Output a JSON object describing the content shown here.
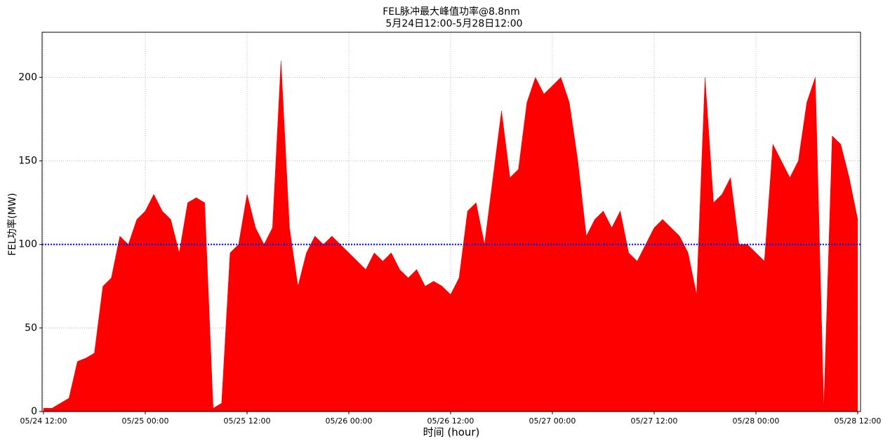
{
  "chart_data": {
    "type": "area",
    "title": "FEL脉冲最大峰值功率@8.8nm",
    "subtitle": "5月24日12:00-5月28日12:00",
    "xlabel": "时间 (hour)",
    "ylabel": "FEL功率(MW)",
    "x": [
      "05/24 12:00",
      "05/24 13:00",
      "05/24 14:00",
      "05/24 15:00",
      "05/24 16:00",
      "05/24 17:00",
      "05/24 18:00",
      "05/24 19:00",
      "05/24 20:00",
      "05/24 21:00",
      "05/24 22:00",
      "05/24 23:00",
      "05/25 00:00",
      "05/25 01:00",
      "05/25 02:00",
      "05/25 03:00",
      "05/25 04:00",
      "05/25 05:00",
      "05/25 06:00",
      "05/25 07:00",
      "05/25 08:00",
      "05/25 09:00",
      "05/25 10:00",
      "05/25 11:00",
      "05/25 12:00",
      "05/25 13:00",
      "05/25 14:00",
      "05/25 15:00",
      "05/25 16:00",
      "05/25 17:00",
      "05/25 18:00",
      "05/25 19:00",
      "05/25 20:00",
      "05/25 21:00",
      "05/25 22:00",
      "05/25 23:00",
      "05/26 00:00",
      "05/26 01:00",
      "05/26 02:00",
      "05/26 03:00",
      "05/26 04:00",
      "05/26 05:00",
      "05/26 06:00",
      "05/26 07:00",
      "05/26 08:00",
      "05/26 09:00",
      "05/26 10:00",
      "05/26 11:00",
      "05/26 12:00",
      "05/26 13:00",
      "05/26 14:00",
      "05/26 15:00",
      "05/26 16:00",
      "05/26 17:00",
      "05/26 18:00",
      "05/26 19:00",
      "05/26 20:00",
      "05/26 21:00",
      "05/26 22:00",
      "05/26 23:00",
      "05/27 00:00",
      "05/27 01:00",
      "05/27 02:00",
      "05/27 03:00",
      "05/27 04:00",
      "05/27 05:00",
      "05/27 06:00",
      "05/27 07:00",
      "05/27 08:00",
      "05/27 09:00",
      "05/27 10:00",
      "05/27 11:00",
      "05/27 12:00",
      "05/27 13:00",
      "05/27 14:00",
      "05/27 15:00",
      "05/27 16:00",
      "05/27 17:00",
      "05/27 18:00",
      "05/27 19:00",
      "05/27 20:00",
      "05/27 21:00",
      "05/27 22:00",
      "05/27 23:00",
      "05/28 00:00",
      "05/28 01:00",
      "05/28 02:00",
      "05/28 03:00",
      "05/28 04:00",
      "05/28 05:00",
      "05/28 06:00",
      "05/28 07:00",
      "05/28 08:00",
      "05/28 09:00",
      "05/28 10:00",
      "05/28 11:00",
      "05/28 12:00"
    ],
    "values": [
      2,
      2,
      5,
      8,
      30,
      32,
      35,
      75,
      80,
      105,
      100,
      115,
      120,
      130,
      120,
      115,
      95,
      125,
      128,
      125,
      2,
      5,
      95,
      100,
      130,
      110,
      100,
      110,
      210,
      110,
      75,
      95,
      105,
      100,
      105,
      100,
      95,
      90,
      85,
      95,
      90,
      95,
      85,
      80,
      85,
      75,
      78,
      75,
      70,
      80,
      120,
      125,
      100,
      140,
      180,
      140,
      145,
      185,
      200,
      190,
      195,
      200,
      185,
      150,
      105,
      115,
      120,
      110,
      120,
      95,
      90,
      100,
      110,
      115,
      110,
      105,
      95,
      70,
      200,
      125,
      130,
      140,
      100,
      100,
      95,
      90,
      160,
      150,
      140,
      150,
      185,
      200,
      2,
      165,
      160,
      140,
      115
    ],
    "color": "#ff0000",
    "xlim": [
      "05/24 11:50",
      "05/28 12:20"
    ],
    "xticks": [
      "05/24 12:00",
      "05/25 00:00",
      "05/25 12:00",
      "05/26 00:00",
      "05/26 12:00",
      "05/27 00:00",
      "05/27 12:00",
      "05/28 00:00",
      "05/28 12:00"
    ],
    "ylim": [
      0,
      227
    ],
    "yticks": [
      0,
      50,
      100,
      150,
      200
    ],
    "grid": true,
    "hline": 100,
    "hline_color": "#0000ff"
  }
}
